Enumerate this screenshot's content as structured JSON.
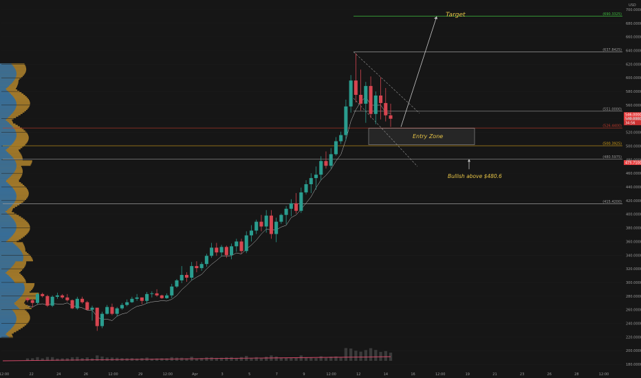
{
  "chart_data": {
    "type": "candlestick",
    "y_unit_label": "USD",
    "ylim": [
      172,
      708
    ],
    "y_ticks": [
      180,
      200,
      220,
      240,
      260,
      280,
      300,
      320,
      340,
      360,
      380,
      400,
      420,
      440,
      460,
      480,
      500,
      520,
      540,
      560,
      580,
      600,
      620,
      640,
      660,
      680,
      700
    ],
    "y_tick_labels": [
      "180.0000",
      "200.0000",
      "220.0000",
      "240.0000",
      "260.0000",
      "280.0000",
      "300.0000",
      "320.0000",
      "340.0000",
      "360.0000",
      "380.0000",
      "400.0000",
      "420.0000",
      "440.0000",
      "460.0000",
      "480.0000",
      "500.0000",
      "520.0000",
      "540.0000",
      "560.0000",
      "580.0000",
      "600.0000",
      "620.0000",
      "640.0000",
      "660.0000",
      "680.0000",
      "700.0000"
    ],
    "x_ticks": [
      "12:00",
      "22",
      "24",
      "26",
      "12:00",
      "29",
      "12:00",
      "Apr",
      "3",
      "5",
      "7",
      "9",
      "12:00",
      "12",
      "14",
      "16",
      "12:00",
      "19",
      "21",
      "23",
      "26",
      "28",
      "12:00"
    ],
    "price_levels": [
      {
        "value": 690.3325,
        "label": "(690.3325)",
        "color": "#3fbf3f"
      },
      {
        "value": 637.8425,
        "label": "(637.8425)",
        "color": "#9a9a9a"
      },
      {
        "value": 551.0,
        "label": "(551.0000)",
        "color": "#9a9a9a"
      },
      {
        "value": 526.44,
        "label": "(526.4400)",
        "color": "#c0392b"
      },
      {
        "value": 500.3925,
        "label": "(500.3925)",
        "color": "#d4a017"
      },
      {
        "value": 480.5975,
        "label": "(480.5975)",
        "color": "#9a9a9a"
      },
      {
        "value": 415.42,
        "label": "(415.4200)",
        "color": "#9a9a9a"
      }
    ],
    "price_badges": [
      {
        "value": 546,
        "label": "546.0000",
        "color": "#e84040"
      },
      {
        "value": 540,
        "label": "540.0000",
        "color": "#e84040"
      },
      {
        "value": 534,
        "label": "34:56",
        "color": "#c93030"
      },
      {
        "value": 475.71,
        "label": "475.7100",
        "color": "#e84040"
      }
    ],
    "annotations": [
      {
        "text": "Target"
      },
      {
        "text": "Entry Zone"
      },
      {
        "text": "Bullish above $480.6"
      }
    ],
    "entry_zone": [
      502,
      526
    ],
    "candles_ohlc": [
      [
        277,
        279,
        271,
        274
      ],
      [
        274,
        276,
        263,
        270
      ],
      [
        270,
        285,
        268,
        283
      ],
      [
        283,
        285,
        278,
        280
      ],
      [
        280,
        282,
        264,
        266
      ],
      [
        266,
        281,
        264,
        279
      ],
      [
        279,
        285,
        276,
        281
      ],
      [
        281,
        283,
        276,
        278
      ],
      [
        278,
        283,
        272,
        274
      ],
      [
        274,
        275,
        261,
        262
      ],
      [
        262,
        279,
        260,
        276
      ],
      [
        276,
        279,
        269,
        271
      ],
      [
        271,
        273,
        259,
        260
      ],
      [
        260,
        266,
        244,
        263
      ],
      [
        263,
        263,
        229,
        236
      ],
      [
        236,
        257,
        233,
        254
      ],
      [
        254,
        267,
        253,
        264
      ],
      [
        264,
        269,
        252,
        254
      ],
      [
        254,
        264,
        250,
        262
      ],
      [
        262,
        270,
        260,
        267
      ],
      [
        267,
        275,
        265,
        271
      ],
      [
        271,
        279,
        270,
        276
      ],
      [
        276,
        283,
        273,
        278
      ],
      [
        278,
        278,
        268,
        273
      ],
      [
        273,
        286,
        269,
        283
      ],
      [
        283,
        287,
        278,
        284
      ],
      [
        284,
        290,
        279,
        281
      ],
      [
        281,
        282,
        276,
        277
      ],
      [
        277,
        284,
        276,
        281
      ],
      [
        281,
        298,
        277,
        294
      ],
      [
        294,
        305,
        292,
        303
      ],
      [
        303,
        324,
        299,
        311
      ],
      [
        311,
        315,
        301,
        307
      ],
      [
        307,
        330,
        303,
        324
      ],
      [
        324,
        331,
        315,
        321
      ],
      [
        321,
        330,
        317,
        327
      ],
      [
        327,
        342,
        323,
        339
      ],
      [
        339,
        358,
        336,
        351
      ],
      [
        351,
        358,
        339,
        344
      ],
      [
        344,
        355,
        338,
        352
      ],
      [
        352,
        354,
        336,
        340
      ],
      [
        340,
        357,
        334,
        353
      ],
      [
        353,
        364,
        345,
        360
      ],
      [
        360,
        364,
        342,
        346
      ],
      [
        346,
        375,
        343,
        369
      ],
      [
        369,
        384,
        360,
        376
      ],
      [
        376,
        392,
        371,
        389
      ],
      [
        389,
        399,
        375,
        382
      ],
      [
        382,
        406,
        373,
        398
      ],
      [
        398,
        406,
        364,
        371
      ],
      [
        371,
        395,
        359,
        389
      ],
      [
        389,
        401,
        386,
        399
      ],
      [
        399,
        412,
        385,
        408
      ],
      [
        408,
        422,
        397,
        416
      ],
      [
        416,
        431,
        401,
        405
      ],
      [
        405,
        439,
        402,
        432
      ],
      [
        432,
        450,
        429,
        444
      ],
      [
        444,
        460,
        431,
        453
      ],
      [
        453,
        470,
        436,
        458
      ],
      [
        458,
        485,
        450,
        478
      ],
      [
        478,
        492,
        467,
        471
      ],
      [
        471,
        497,
        467,
        488
      ],
      [
        488,
        513,
        486,
        507
      ],
      [
        507,
        521,
        503,
        516
      ],
      [
        516,
        568,
        508,
        558
      ],
      [
        558,
        604,
        549,
        596
      ],
      [
        596,
        636,
        564,
        575
      ],
      [
        575,
        612,
        552,
        562
      ],
      [
        562,
        594,
        534,
        588
      ],
      [
        588,
        602,
        541,
        547
      ],
      [
        547,
        580,
        532,
        574
      ],
      [
        574,
        601,
        539,
        563
      ],
      [
        563,
        585,
        536,
        545
      ],
      [
        545,
        562,
        528,
        540
      ]
    ]
  }
}
